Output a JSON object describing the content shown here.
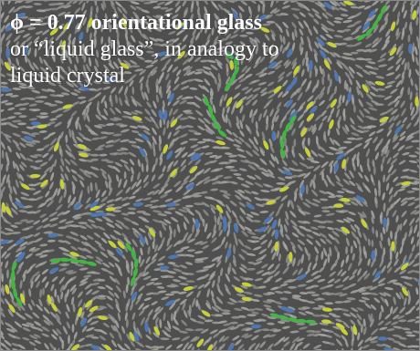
{
  "caption": {
    "title": "ϕ = 0.77 orientational glass",
    "line2": "or “liquid glass”, in analogy to",
    "line3": "liquid crystal"
  },
  "particles": {
    "background_color": "#4e4f4e",
    "default_color": "#a9aaa5",
    "highlight_colors": {
      "yellow": "#c8cf3c",
      "blue": "#4f78b3",
      "green": "#43b542"
    }
  }
}
